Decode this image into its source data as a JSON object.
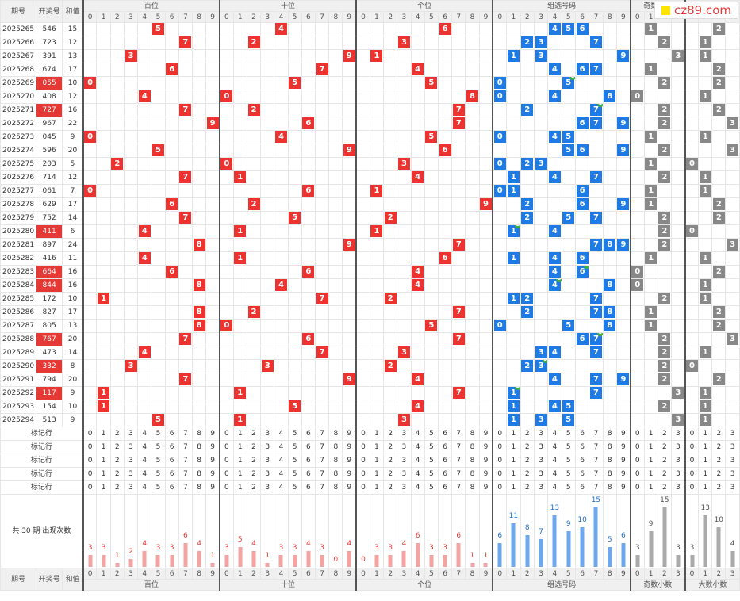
{
  "header": {
    "issue": "期号",
    "draw": "开奖号",
    "sum": "和值",
    "groups": [
      "百位",
      "十位",
      "个位",
      "组选号码",
      "奇数小数",
      "大数小数"
    ]
  },
  "digits10": [
    "0",
    "1",
    "2",
    "3",
    "4",
    "5",
    "6",
    "7",
    "8",
    "9"
  ],
  "digits4": [
    "0",
    "1",
    "2",
    "3"
  ],
  "rows": [
    {
      "issue": "2025265",
      "draw": "546",
      "sum": "15",
      "hl": false,
      "odd": 1,
      "big": 2,
      "dup": -1
    },
    {
      "issue": "2025266",
      "draw": "723",
      "sum": "12",
      "hl": false,
      "odd": 2,
      "big": 1,
      "dup": -1
    },
    {
      "issue": "2025267",
      "draw": "391",
      "sum": "13",
      "hl": false,
      "odd": 3,
      "big": 1,
      "dup": -1
    },
    {
      "issue": "2025268",
      "draw": "674",
      "sum": "17",
      "hl": false,
      "odd": 1,
      "big": 2,
      "dup": -1
    },
    {
      "issue": "2025269",
      "draw": "055",
      "sum": "10",
      "hl": true,
      "odd": 2,
      "big": 2,
      "dup": 5
    },
    {
      "issue": "2025270",
      "draw": "408",
      "sum": "12",
      "hl": false,
      "odd": 0,
      "big": 1,
      "dup": -1
    },
    {
      "issue": "2025271",
      "draw": "727",
      "sum": "16",
      "hl": true,
      "odd": 2,
      "big": 2,
      "dup": 7
    },
    {
      "issue": "2025272",
      "draw": "967",
      "sum": "22",
      "hl": false,
      "odd": 2,
      "big": 3,
      "dup": -1
    },
    {
      "issue": "2025273",
      "draw": "045",
      "sum": "9",
      "hl": false,
      "odd": 1,
      "big": 1,
      "dup": -1
    },
    {
      "issue": "2025274",
      "draw": "596",
      "sum": "20",
      "hl": false,
      "odd": 2,
      "big": 3,
      "dup": -1
    },
    {
      "issue": "2025275",
      "draw": "203",
      "sum": "5",
      "hl": false,
      "odd": 1,
      "big": 0,
      "dup": -1
    },
    {
      "issue": "2025276",
      "draw": "714",
      "sum": "12",
      "hl": false,
      "odd": 2,
      "big": 1,
      "dup": -1
    },
    {
      "issue": "2025277",
      "draw": "061",
      "sum": "7",
      "hl": false,
      "odd": 1,
      "big": 1,
      "dup": -1
    },
    {
      "issue": "2025278",
      "draw": "629",
      "sum": "17",
      "hl": false,
      "odd": 1,
      "big": 2,
      "dup": -1
    },
    {
      "issue": "2025279",
      "draw": "752",
      "sum": "14",
      "hl": false,
      "odd": 2,
      "big": 2,
      "dup": -1
    },
    {
      "issue": "2025280",
      "draw": "411",
      "sum": "6",
      "hl": true,
      "odd": 2,
      "big": 0,
      "dup": 1
    },
    {
      "issue": "2025281",
      "draw": "897",
      "sum": "24",
      "hl": false,
      "odd": 2,
      "big": 3,
      "dup": -1
    },
    {
      "issue": "2025282",
      "draw": "416",
      "sum": "11",
      "hl": false,
      "odd": 1,
      "big": 1,
      "dup": -1
    },
    {
      "issue": "2025283",
      "draw": "664",
      "sum": "16",
      "hl": true,
      "odd": 0,
      "big": 2,
      "dup": 6
    },
    {
      "issue": "2025284",
      "draw": "844",
      "sum": "16",
      "hl": true,
      "odd": 0,
      "big": 1,
      "dup": 4
    },
    {
      "issue": "2025285",
      "draw": "172",
      "sum": "10",
      "hl": false,
      "odd": 2,
      "big": 1,
      "dup": -1
    },
    {
      "issue": "2025286",
      "draw": "827",
      "sum": "17",
      "hl": false,
      "odd": 1,
      "big": 2,
      "dup": -1
    },
    {
      "issue": "2025287",
      "draw": "805",
      "sum": "13",
      "hl": false,
      "odd": 1,
      "big": 2,
      "dup": -1
    },
    {
      "issue": "2025288",
      "draw": "767",
      "sum": "20",
      "hl": true,
      "odd": 2,
      "big": 3,
      "dup": 7
    },
    {
      "issue": "2025289",
      "draw": "473",
      "sum": "14",
      "hl": false,
      "odd": 2,
      "big": 1,
      "dup": -1
    },
    {
      "issue": "2025290",
      "draw": "332",
      "sum": "8",
      "hl": true,
      "odd": 2,
      "big": 0,
      "dup": 3
    },
    {
      "issue": "2025291",
      "draw": "794",
      "sum": "20",
      "hl": false,
      "odd": 2,
      "big": 2,
      "dup": -1
    },
    {
      "issue": "2025292",
      "draw": "117",
      "sum": "9",
      "hl": true,
      "odd": 3,
      "big": 1,
      "dup": 1
    },
    {
      "issue": "2025293",
      "draw": "154",
      "sum": "10",
      "hl": false,
      "odd": 2,
      "big": 1,
      "dup": -1
    },
    {
      "issue": "2025294",
      "draw": "513",
      "sum": "9",
      "hl": false,
      "odd": 3,
      "big": 1,
      "dup": -1
    }
  ],
  "marker": {
    "label": "标记行",
    "rows": 5
  },
  "stats": {
    "label": "共 30 期 出现次数",
    "hundreds": [
      3,
      3,
      1,
      2,
      4,
      3,
      3,
      6,
      4,
      1
    ],
    "tens": [
      3,
      5,
      4,
      1,
      3,
      3,
      4,
      3,
      0,
      4
    ],
    "units": [
      0,
      3,
      3,
      4,
      6,
      3,
      3,
      6,
      1,
      1
    ],
    "group": [
      6,
      11,
      8,
      7,
      13,
      9,
      10,
      15,
      5,
      6
    ],
    "oddsmall": [
      3,
      9,
      15,
      3
    ],
    "bigsmall": [
      3,
      13,
      10,
      4
    ]
  },
  "logo": {
    "text": "cz89.com"
  },
  "colors": {
    "red": "#ec3330",
    "blue": "#1e7be5",
    "gray": "#888888",
    "highlight": "#e53935"
  }
}
